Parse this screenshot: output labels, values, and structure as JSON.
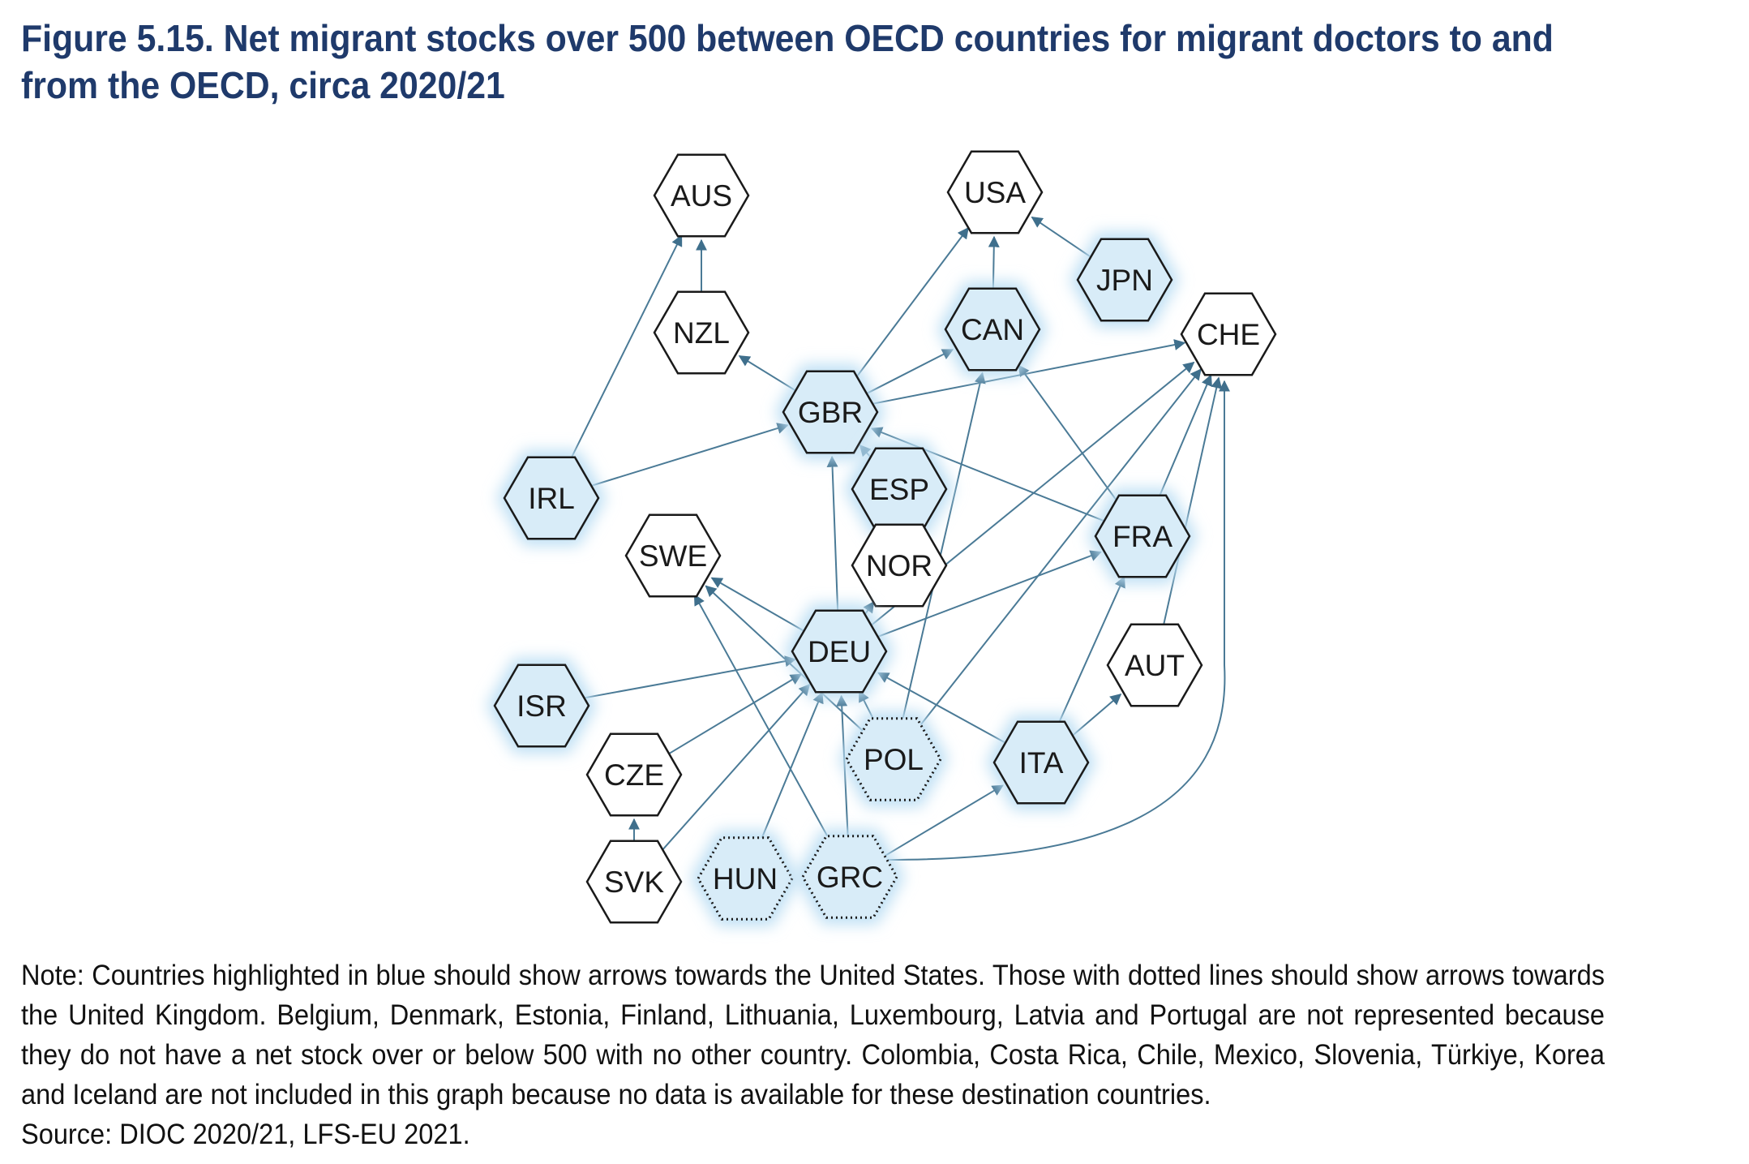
{
  "title": "Figure 5.15. Net migrant stocks over 500 between OECD countries for migrant doctors to and from the OECD, circa 2020/21",
  "note": "Note: Countries highlighted in blue should show arrows towards the United States. Those with dotted lines should show arrows towards the United Kingdom. Belgium, Denmark, Estonia, Finland, Lithuania, Luxembourg, Latvia and Portugal are not represented because they do not have a net stock over or below 500 with no other country. Colombia, Costa Rica, Chile, Mexico, Slovenia, Türkiye, Korea and Iceland are not included in this graph because no data is available for these destination countries.",
  "source": "Source: DIOC 2020/21, LFS-EU 2021.",
  "colors": {
    "accent_text": "#4a9fc9",
    "node_fill": "#d8ecf8",
    "edge": "#4a7a96",
    "title": "#1f3a6b"
  },
  "nodes": [
    {
      "id": "AUS",
      "label": "AUS",
      "highlight": false,
      "dotted": false,
      "label_color": "#1a1a1a"
    },
    {
      "id": "USA",
      "label": "USA",
      "highlight": false,
      "dotted": false,
      "label_color": "#4a9fc9"
    },
    {
      "id": "JPN",
      "label": "JPN",
      "highlight": true,
      "dotted": false,
      "label_color": "#1a1a1a"
    },
    {
      "id": "NZL",
      "label": "NZL",
      "highlight": false,
      "dotted": false,
      "label_color": "#1a1a1a"
    },
    {
      "id": "CAN",
      "label": "CAN",
      "highlight": true,
      "dotted": false,
      "label_color": "#1a1a1a"
    },
    {
      "id": "CHE",
      "label": "CHE",
      "highlight": false,
      "dotted": false,
      "label_color": "#1a1a1a"
    },
    {
      "id": "GBR",
      "label": "GBR",
      "highlight": true,
      "dotted": false,
      "label_color": "#1a1a1a"
    },
    {
      "id": "IRL",
      "label": "IRL",
      "highlight": true,
      "dotted": false,
      "label_color": "#1a1a1a"
    },
    {
      "id": "ESP",
      "label": "ESP",
      "highlight": true,
      "dotted": false,
      "label_color": "#1a1a1a"
    },
    {
      "id": "NOR",
      "label": "NOR",
      "highlight": false,
      "dotted": false,
      "label_color": "#1a1a1a"
    },
    {
      "id": "FRA",
      "label": "FRA",
      "highlight": true,
      "dotted": false,
      "label_color": "#1a1a1a"
    },
    {
      "id": "SWE",
      "label": "SWE",
      "highlight": false,
      "dotted": false,
      "label_color": "#1a1a1a"
    },
    {
      "id": "DEU",
      "label": "DEU",
      "highlight": true,
      "dotted": false,
      "label_color": "#1a1a1a"
    },
    {
      "id": "AUT",
      "label": "AUT",
      "highlight": false,
      "dotted": false,
      "label_color": "#1a1a1a"
    },
    {
      "id": "ISR",
      "label": "ISR",
      "highlight": true,
      "dotted": false,
      "label_color": "#1a1a1a"
    },
    {
      "id": "CZE",
      "label": "CZE",
      "highlight": false,
      "dotted": false,
      "label_color": "#1a1a1a"
    },
    {
      "id": "POL",
      "label": "POL",
      "highlight": true,
      "dotted": true,
      "label_color": "#1a1a1a"
    },
    {
      "id": "ITA",
      "label": "ITA",
      "highlight": true,
      "dotted": false,
      "label_color": "#1a1a1a"
    },
    {
      "id": "SVK",
      "label": "SVK",
      "highlight": false,
      "dotted": false,
      "label_color": "#1a1a1a"
    },
    {
      "id": "HUN",
      "label": "HUN",
      "highlight": true,
      "dotted": true,
      "label_color": "#1a1a1a"
    },
    {
      "id": "GRC",
      "label": "GRC",
      "highlight": true,
      "dotted": true,
      "label_color": "#1a1a1a"
    }
  ],
  "edges": [
    {
      "from": "NZL",
      "to": "AUS"
    },
    {
      "from": "IRL",
      "to": "AUS"
    },
    {
      "from": "CAN",
      "to": "USA"
    },
    {
      "from": "GBR",
      "to": "USA"
    },
    {
      "from": "JPN",
      "to": "USA"
    },
    {
      "from": "GBR",
      "to": "NZL"
    },
    {
      "from": "GBR",
      "to": "CAN"
    },
    {
      "from": "GBR",
      "to": "CHE"
    },
    {
      "from": "IRL",
      "to": "GBR"
    },
    {
      "from": "ESP",
      "to": "GBR"
    },
    {
      "from": "FRA",
      "to": "GBR"
    },
    {
      "from": "DEU",
      "to": "GBR"
    },
    {
      "from": "FRA",
      "to": "CAN"
    },
    {
      "from": "FRA",
      "to": "CHE"
    },
    {
      "from": "POL",
      "to": "CAN"
    },
    {
      "from": "POL",
      "to": "CHE"
    },
    {
      "from": "DEU",
      "to": "CHE"
    },
    {
      "from": "DEU",
      "to": "NOR"
    },
    {
      "from": "DEU",
      "to": "SWE"
    },
    {
      "from": "DEU",
      "to": "FRA"
    },
    {
      "from": "ISR",
      "to": "DEU"
    },
    {
      "from": "CZE",
      "to": "DEU"
    },
    {
      "from": "SVK",
      "to": "DEU"
    },
    {
      "from": "HUN",
      "to": "DEU"
    },
    {
      "from": "GRC",
      "to": "DEU"
    },
    {
      "from": "POL",
      "to": "DEU"
    },
    {
      "from": "ITA",
      "to": "DEU"
    },
    {
      "from": "POL",
      "to": "SWE"
    },
    {
      "from": "GRC",
      "to": "SWE"
    },
    {
      "from": "SVK",
      "to": "CZE"
    },
    {
      "from": "ITA",
      "to": "FRA"
    },
    {
      "from": "ITA",
      "to": "AUT"
    },
    {
      "from": "AUT",
      "to": "CHE"
    },
    {
      "from": "GRC",
      "to": "ITA"
    },
    {
      "from": "GRC",
      "to": "CHE"
    }
  ]
}
